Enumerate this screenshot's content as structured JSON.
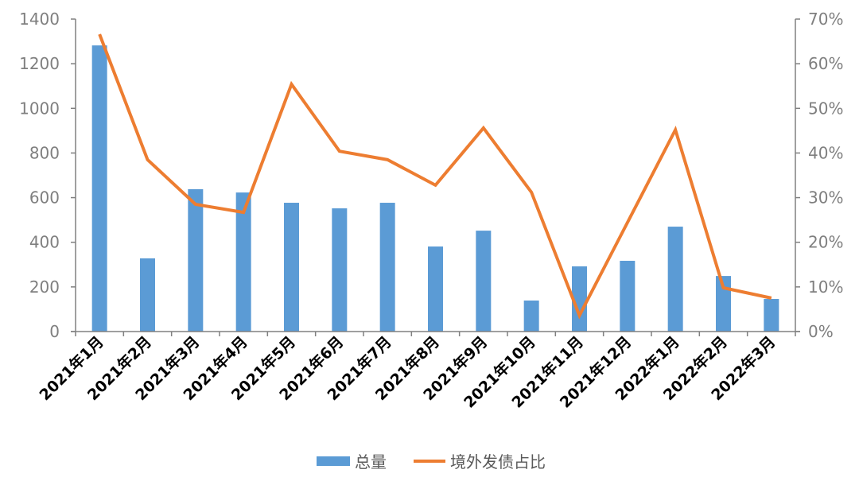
{
  "chart_data": {
    "type": "bar+line",
    "categories": [
      "2021年1月",
      "2021年2月",
      "2021年3月",
      "2021年4月",
      "2021年5月",
      "2021年6月",
      "2021年7月",
      "2021年8月",
      "2021年9月",
      "2021年10月",
      "2021年11月",
      "2021年12月",
      "2022年1月",
      "2022年2月",
      "2022年3月"
    ],
    "series": [
      {
        "name": "总量",
        "type": "bar",
        "axis": "left",
        "color": "#5B9BD5",
        "values": [
          1282,
          328,
          638,
          623,
          577,
          552,
          577,
          381,
          452,
          139,
          292,
          317,
          470,
          249,
          146
        ]
      },
      {
        "name": "境外发债占比",
        "type": "line",
        "axis": "right",
        "color": "#ED7D31",
        "values": [
          66.6,
          38.5,
          28.5,
          26.7,
          55.4,
          40.4,
          38.5,
          32.8,
          45.6,
          31.2,
          3.6,
          24.4,
          45.2,
          9.8,
          7.5
        ]
      }
    ],
    "y_left": {
      "lim": [
        0,
        1400
      ],
      "ticks": [
        "0",
        "200",
        "400",
        "600",
        "800",
        "1000",
        "1200",
        "1400"
      ]
    },
    "y_right": {
      "lim": [
        0,
        70
      ],
      "unit": "%",
      "ticks": [
        "0%",
        "10%",
        "20%",
        "30%",
        "40%",
        "50%",
        "60%",
        "70%"
      ]
    },
    "grid": false,
    "legend": "bottom",
    "title": "",
    "xlabel": "",
    "ylabel": ""
  }
}
